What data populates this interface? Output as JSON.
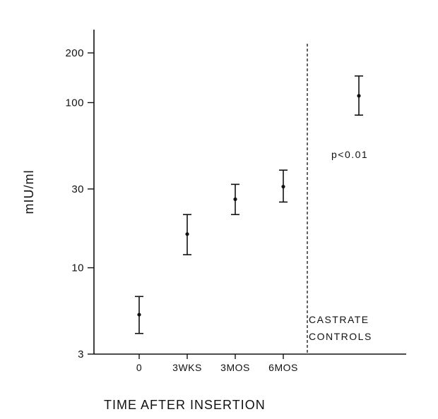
{
  "chart_data": {
    "type": "scatter",
    "title": "",
    "xlabel": "TIME AFTER INSERTION",
    "ylabel": "mIU/ml",
    "y_scale": "log",
    "ylim": [
      3,
      250
    ],
    "yticks": [
      3,
      10,
      30,
      100,
      200
    ],
    "ytick_labels": [
      "3",
      "10",
      "30",
      "100",
      "200"
    ],
    "categories": [
      "0",
      "3WKS",
      "3MOS",
      "6MOS"
    ],
    "series": [
      {
        "points": [
          {
            "x": "0",
            "y": 5.2,
            "low": 4.0,
            "high": 6.7
          },
          {
            "x": "3WKS",
            "y": 16.0,
            "low": 12.0,
            "high": 21.0
          },
          {
            "x": "3MOS",
            "y": 26.0,
            "low": 21.0,
            "high": 32.0
          },
          {
            "x": "6MOS",
            "y": 31.0,
            "low": 25.0,
            "high": 39.0
          }
        ]
      },
      {
        "points": [
          {
            "x": "CASTRATE CONTROLS",
            "y": 110.0,
            "low": 84.0,
            "high": 145.0
          }
        ]
      }
    ],
    "annotations": {
      "group_label_line1": "CASTRATE",
      "group_label_line2": "CONTROLS",
      "significance": "p<0.01"
    },
    "grid": false
  }
}
